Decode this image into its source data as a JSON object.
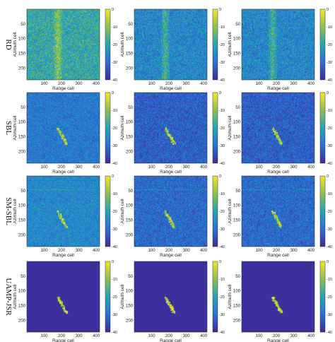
{
  "figure": {
    "row_labels": [
      "RD",
      "SBL",
      "SM-SBL",
      "UAMP-JSR"
    ],
    "x_axis_label": "Range cell",
    "y_axis_label": "Azimuth cell",
    "x_ticks": [
      "100",
      "200",
      "300",
      "400"
    ],
    "y_ticks": [
      "50",
      "100",
      "150",
      "200"
    ],
    "colorbar_ticks": [
      "0",
      "-10",
      "-20",
      "-30",
      "-40"
    ],
    "colors": {
      "low": "#3d2b97",
      "mid": "#1fa7b8",
      "high": "#f7e627"
    }
  },
  "chart_data": [
    {
      "type": "heatmap",
      "row": "RD",
      "column": 1,
      "xlabel": "Range cell",
      "ylabel": "Azimuth cell",
      "xlim": [
        0,
        420
      ],
      "ylim": [
        1,
        240
      ],
      "clim": [
        -40,
        0
      ],
      "colorbar_ticks": [
        0,
        -10,
        -20,
        -30,
        -40
      ]
    },
    {
      "type": "heatmap",
      "row": "RD",
      "column": 2,
      "xlabel": "Range cell",
      "ylabel": "Azimuth cell",
      "xlim": [
        0,
        420
      ],
      "ylim": [
        1,
        240
      ],
      "clim": [
        -40,
        0
      ],
      "colorbar_ticks": [
        0,
        -10,
        -20,
        -30,
        -40
      ]
    },
    {
      "type": "heatmap",
      "row": "RD",
      "column": 3,
      "xlabel": "Range cell",
      "ylabel": "Azimuth cell",
      "xlim": [
        0,
        420
      ],
      "ylim": [
        1,
        240
      ],
      "clim": [
        -40,
        0
      ],
      "colorbar_ticks": [
        0,
        -10,
        -20,
        -30,
        -40
      ]
    },
    {
      "type": "heatmap",
      "row": "SBL",
      "column": 1,
      "xlabel": "Range cell",
      "ylabel": "Azimuth cell",
      "xlim": [
        0,
        420
      ],
      "ylim": [
        1,
        240
      ],
      "clim": [
        -40,
        0
      ],
      "colorbar_ticks": [
        0,
        -10,
        -20,
        -30,
        -40
      ]
    },
    {
      "type": "heatmap",
      "row": "SBL",
      "column": 2,
      "xlabel": "Range cell",
      "ylabel": "Azimuth cell",
      "xlim": [
        0,
        420
      ],
      "ylim": [
        1,
        240
      ],
      "clim": [
        -40,
        0
      ],
      "colorbar_ticks": [
        0,
        -10,
        -20,
        -30,
        -40
      ]
    },
    {
      "type": "heatmap",
      "row": "SBL",
      "column": 3,
      "xlabel": "Range cell",
      "ylabel": "Azimuth cell",
      "xlim": [
        0,
        420
      ],
      "ylim": [
        1,
        240
      ],
      "clim": [
        -40,
        0
      ],
      "colorbar_ticks": [
        0,
        -10,
        -20,
        -30,
        -40
      ]
    },
    {
      "type": "heatmap",
      "row": "SM-SBL",
      "column": 1,
      "xlabel": "Range cell",
      "ylabel": "Azimuth cell",
      "xlim": [
        0,
        420
      ],
      "ylim": [
        1,
        240
      ],
      "clim": [
        -40,
        0
      ],
      "colorbar_ticks": [
        0,
        -10,
        -20,
        -30,
        -40
      ]
    },
    {
      "type": "heatmap",
      "row": "SM-SBL",
      "column": 2,
      "xlabel": "Range cell",
      "ylabel": "Azimuth cell",
      "xlim": [
        0,
        420
      ],
      "ylim": [
        1,
        240
      ],
      "clim": [
        -40,
        0
      ],
      "colorbar_ticks": [
        0,
        -10,
        -20,
        -30,
        -40
      ]
    },
    {
      "type": "heatmap",
      "row": "SM-SBL",
      "column": 3,
      "xlabel": "Range cell",
      "ylabel": "Azimuth cell",
      "xlim": [
        0,
        420
      ],
      "ylim": [
        1,
        240
      ],
      "clim": [
        -40,
        0
      ],
      "colorbar_ticks": [
        0,
        -10,
        -20,
        -30,
        -40
      ]
    },
    {
      "type": "heatmap",
      "row": "UAMP-JSR",
      "column": 1,
      "xlabel": "Range cell",
      "ylabel": "Azimuth cell",
      "xlim": [
        0,
        420
      ],
      "ylim": [
        1,
        240
      ],
      "clim": [
        -40,
        0
      ],
      "colorbar_ticks": [
        0,
        -10,
        -20,
        -30,
        -40
      ]
    },
    {
      "type": "heatmap",
      "row": "UAMP-JSR",
      "column": 2,
      "xlabel": "Range cell",
      "ylabel": "Azimuth cell",
      "xlim": [
        0,
        420
      ],
      "ylim": [
        1,
        240
      ],
      "clim": [
        -40,
        0
      ],
      "colorbar_ticks": [
        0,
        -10,
        -20,
        -30,
        -40
      ]
    },
    {
      "type": "heatmap",
      "row": "UAMP-JSR",
      "column": 3,
      "xlabel": "Range cell",
      "ylabel": "Azimuth cell",
      "xlim": [
        0,
        420
      ],
      "ylim": [
        1,
        240
      ],
      "clim": [
        -40,
        0
      ],
      "colorbar_ticks": [
        0,
        -10,
        -20,
        -30,
        -40
      ]
    }
  ]
}
